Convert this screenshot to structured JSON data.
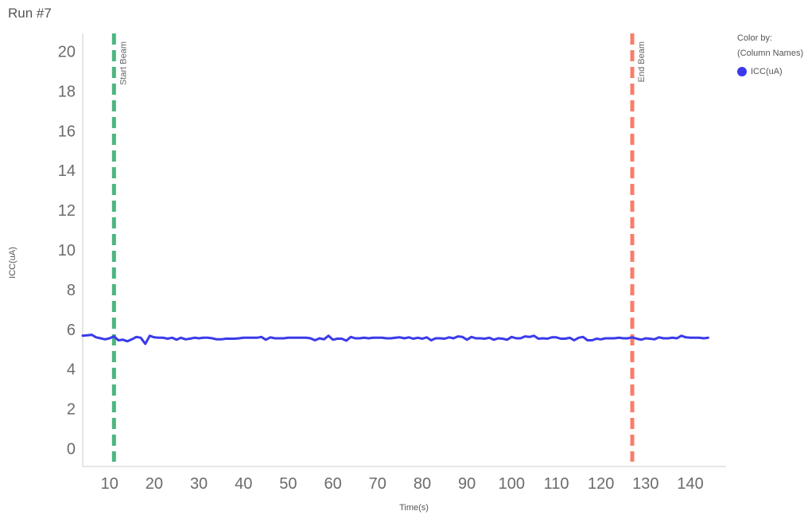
{
  "page": {
    "title": "Run #7"
  },
  "legend": {
    "color_by_label": "Color by:",
    "column_label": "(Column Names)",
    "items": [
      {
        "label": "ICC(uA)",
        "color": "#3a3aeb"
      }
    ]
  },
  "chart_data": {
    "type": "line",
    "xlabel": "Time(s)",
    "ylabel": "ICC(uA)",
    "xlim": [
      4,
      148
    ],
    "ylim": [
      -0.9,
      20.9
    ],
    "xticks": [
      10,
      20,
      30,
      40,
      50,
      60,
      70,
      80,
      90,
      100,
      110,
      120,
      130,
      140
    ],
    "yticks": [
      0,
      2,
      4,
      6,
      8,
      10,
      12,
      14,
      16,
      18,
      20
    ],
    "grid": false,
    "legend_position": "top-right",
    "series": [
      {
        "name": "ICC(uA)",
        "color": "#3a3aeb",
        "x": [
          4,
          5,
          6,
          7,
          8,
          9,
          10,
          11,
          12,
          13,
          14,
          15,
          16,
          17,
          18,
          19,
          20,
          21,
          22,
          23,
          24,
          25,
          26,
          27,
          28,
          29,
          30,
          31,
          32,
          33,
          34,
          35,
          36,
          37,
          38,
          39,
          40,
          41,
          42,
          43,
          44,
          45,
          46,
          47,
          48,
          49,
          50,
          51,
          52,
          53,
          54,
          55,
          56,
          57,
          58,
          59,
          60,
          61,
          62,
          63,
          64,
          65,
          66,
          67,
          68,
          69,
          70,
          71,
          72,
          73,
          74,
          75,
          76,
          77,
          78,
          79,
          80,
          81,
          82,
          83,
          84,
          85,
          86,
          87,
          88,
          89,
          90,
          91,
          92,
          93,
          94,
          95,
          96,
          97,
          98,
          99,
          100,
          101,
          102,
          103,
          104,
          105,
          106,
          107,
          108,
          109,
          110,
          111,
          112,
          113,
          114,
          115,
          116,
          117,
          118,
          119,
          120,
          121,
          122,
          123,
          124,
          125,
          126,
          127,
          128,
          129,
          130,
          131,
          132,
          133,
          134,
          135,
          136,
          137,
          138,
          139,
          140,
          141,
          142,
          143,
          144
        ],
        "y": [
          5.68,
          5.7,
          5.73,
          5.6,
          5.55,
          5.5,
          5.55,
          5.65,
          5.45,
          5.48,
          5.4,
          5.5,
          5.62,
          5.58,
          5.27,
          5.68,
          5.6,
          5.58,
          5.58,
          5.53,
          5.58,
          5.48,
          5.58,
          5.5,
          5.53,
          5.58,
          5.55,
          5.58,
          5.58,
          5.55,
          5.5,
          5.5,
          5.53,
          5.53,
          5.53,
          5.55,
          5.58,
          5.58,
          5.58,
          5.58,
          5.62,
          5.48,
          5.6,
          5.55,
          5.55,
          5.55,
          5.58,
          5.58,
          5.58,
          5.58,
          5.58,
          5.55,
          5.45,
          5.55,
          5.5,
          5.68,
          5.48,
          5.53,
          5.53,
          5.43,
          5.62,
          5.55,
          5.55,
          5.58,
          5.55,
          5.58,
          5.58,
          5.58,
          5.55,
          5.55,
          5.58,
          5.6,
          5.55,
          5.6,
          5.53,
          5.58,
          5.53,
          5.6,
          5.45,
          5.55,
          5.55,
          5.53,
          5.6,
          5.55,
          5.65,
          5.62,
          5.48,
          5.62,
          5.55,
          5.55,
          5.53,
          5.58,
          5.48,
          5.55,
          5.53,
          5.48,
          5.62,
          5.55,
          5.55,
          5.65,
          5.62,
          5.68,
          5.53,
          5.55,
          5.53,
          5.6,
          5.6,
          5.53,
          5.53,
          5.58,
          5.45,
          5.58,
          5.62,
          5.45,
          5.45,
          5.53,
          5.5,
          5.55,
          5.55,
          5.55,
          5.58,
          5.55,
          5.55,
          5.6,
          5.53,
          5.48,
          5.55,
          5.53,
          5.5,
          5.6,
          5.55,
          5.55,
          5.58,
          5.55,
          5.68,
          5.6,
          5.58,
          5.58,
          5.58,
          5.55,
          5.58
        ]
      }
    ],
    "markers": [
      {
        "x": 11,
        "label": "Start Beam",
        "color": "#4db580"
      },
      {
        "x": 127,
        "label": "End Beam",
        "color": "#fa7d6a"
      }
    ]
  }
}
